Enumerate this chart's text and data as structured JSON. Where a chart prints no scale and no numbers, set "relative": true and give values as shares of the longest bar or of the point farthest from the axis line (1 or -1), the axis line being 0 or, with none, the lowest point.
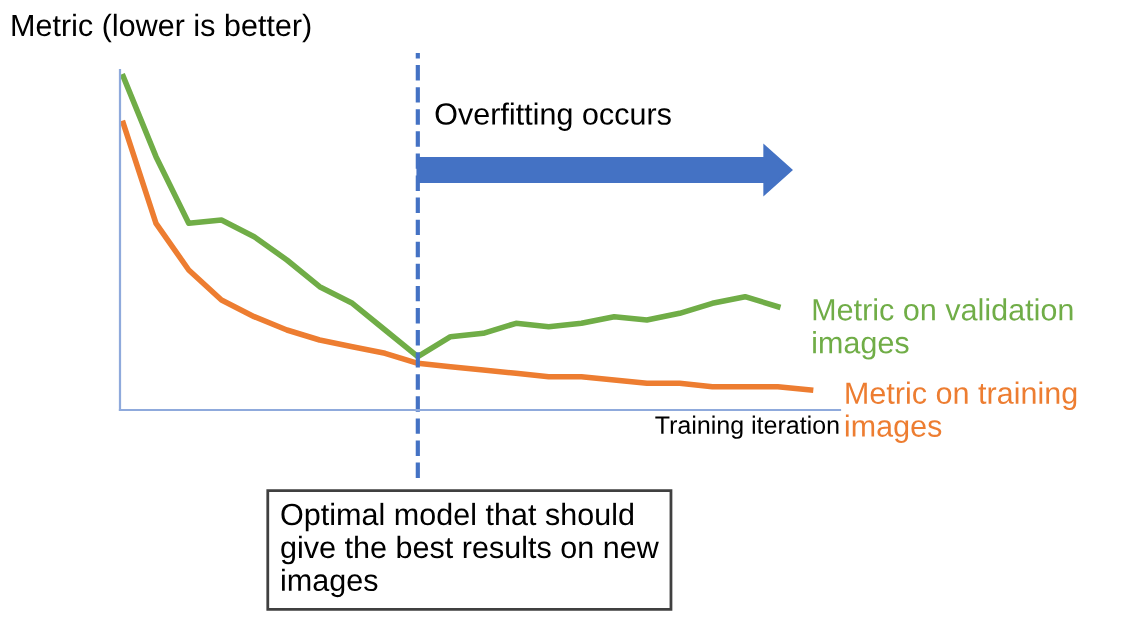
{
  "chart_data": {
    "type": "line",
    "relative": true,
    "ylabel": "Metric (lower is better)",
    "xlabel": "Training iteration",
    "categories": [
      null,
      null,
      null,
      null,
      null,
      null,
      null,
      null,
      null,
      null,
      null,
      null,
      null,
      null,
      null,
      null,
      null,
      null,
      null,
      null,
      null,
      null
    ],
    "series": [
      {
        "name": "Metric on validation images",
        "color": "#70ad47",
        "values": [
          1.0,
          0.76,
          0.56,
          0.57,
          0.52,
          0.45,
          0.37,
          0.32,
          0.24,
          0.16,
          0.22,
          0.23,
          0.26,
          0.25,
          0.26,
          0.28,
          0.27,
          0.29,
          0.32,
          0.34,
          0.31,
          null
        ]
      },
      {
        "name": "Metric on training images",
        "color": "#ed7d31",
        "values": [
          0.86,
          0.56,
          0.42,
          0.33,
          0.28,
          0.24,
          0.21,
          0.19,
          0.17,
          0.14,
          0.13,
          0.12,
          0.11,
          0.1,
          0.1,
          0.09,
          0.08,
          0.08,
          0.07,
          0.07,
          0.07,
          0.06
        ]
      }
    ],
    "annotations": [
      "Overfitting occurs",
      "Optimal model that should give the best results on new images"
    ],
    "legend": false,
    "marker": "none",
    "line_style": "solid"
  }
}
